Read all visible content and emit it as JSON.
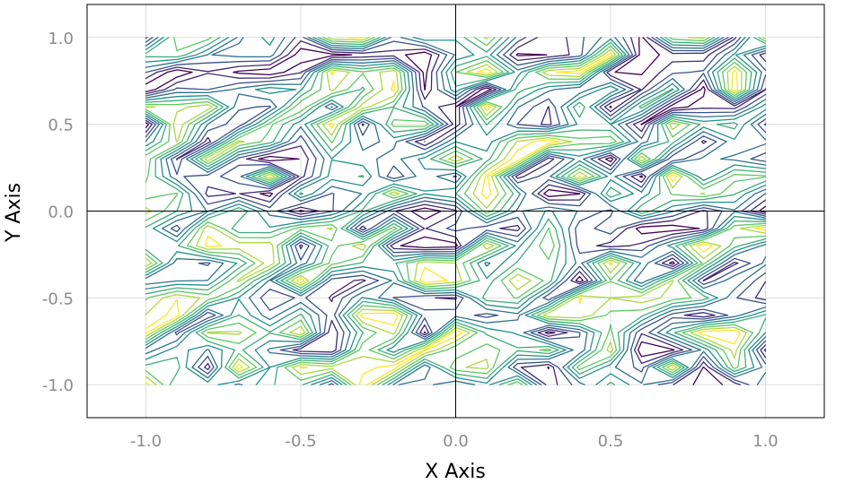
{
  "chart_data": {
    "type": "contour",
    "title": "",
    "xlabel": "X Axis",
    "ylabel": "Y Axis",
    "xlim": [
      -1.19,
      1.19
    ],
    "ylim": [
      -1.19,
      1.19
    ],
    "xticks": [
      -1.0,
      -0.5,
      0.0,
      0.5,
      1.0
    ],
    "xtick_labels": [
      "-1.0",
      "-0.5",
      "0.0",
      "0.5",
      "1.0"
    ],
    "yticks": [
      -1.0,
      -0.5,
      0.0,
      0.5,
      1.0
    ],
    "ytick_labels": [
      "-1.0",
      "-0.5",
      "0.0",
      "0.5",
      "1.0"
    ],
    "grid": true,
    "zero_lines": true,
    "colormap": "viridis",
    "colors": [
      "#440154",
      "#3b528b",
      "#21918c",
      "#5ec962",
      "#fde725"
    ],
    "data_extent": {
      "x": [
        -1.0,
        1.0
      ],
      "y": [
        -1.0,
        1.0
      ]
    },
    "grid_resolution": 21,
    "field_description": "random noise field",
    "contour_levels": [
      0.1,
      0.2,
      0.3,
      0.4,
      0.5,
      0.6,
      0.7,
      0.8,
      0.9
    ]
  }
}
